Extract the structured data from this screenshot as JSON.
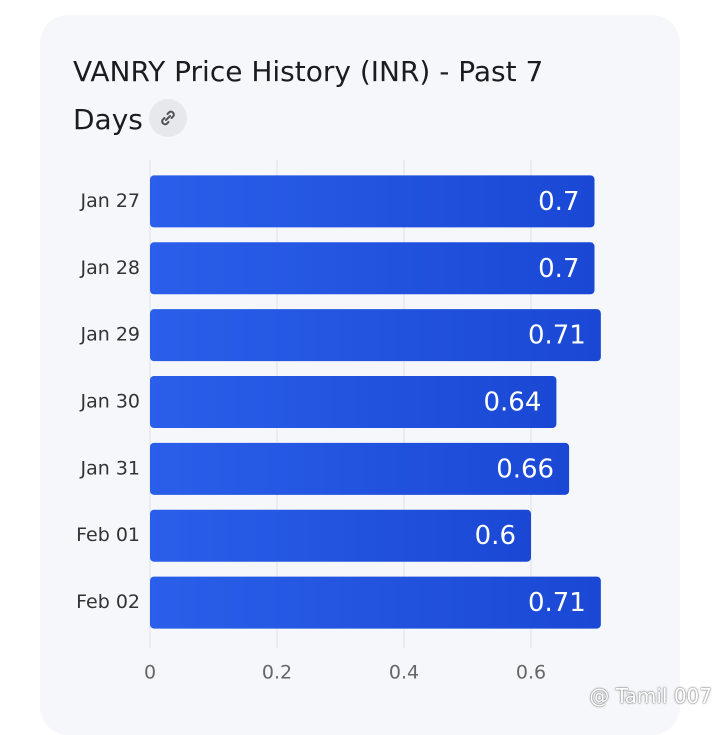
{
  "chart_data": {
    "type": "bar",
    "orientation": "horizontal",
    "title": "VANRY Price History (INR) - Past 7 Days",
    "categories": [
      "Jan 27",
      "Jan 28",
      "Jan 29",
      "Jan 30",
      "Jan 31",
      "Feb 01",
      "Feb 02"
    ],
    "values": [
      0.7,
      0.7,
      0.71,
      0.64,
      0.66,
      0.6,
      0.71
    ],
    "color": "#2356e6",
    "xlim": [
      0,
      0.72
    ],
    "xticks": [
      0,
      0.2,
      0.4,
      0.6
    ],
    "grid": true
  },
  "watermark": "@ Tamil 007"
}
